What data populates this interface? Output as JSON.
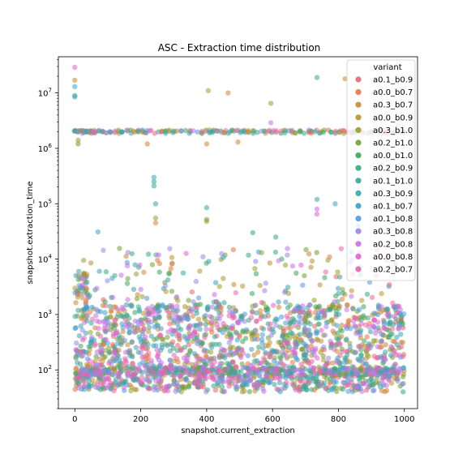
{
  "chart_data": {
    "type": "scatter",
    "title": "ASC - Extraction time distribution",
    "xlabel": "snapshot.current_extraction",
    "ylabel": "snapshot.extraction_time",
    "xlim": [
      -50,
      1040
    ],
    "ylim": [
      20,
      45000000
    ],
    "yscale": "log",
    "x_ticks": [
      {
        "value": 0,
        "label": "0"
      },
      {
        "value": 200,
        "label": "200"
      },
      {
        "value": 400,
        "label": "400"
      },
      {
        "value": 600,
        "label": "600"
      },
      {
        "value": 800,
        "label": "800"
      },
      {
        "value": 1000,
        "label": "1000"
      }
    ],
    "y_ticks": [
      {
        "value": 100,
        "base": "10",
        "exp": "2"
      },
      {
        "value": 1000,
        "base": "10",
        "exp": "3"
      },
      {
        "value": 10000,
        "base": "10",
        "exp": "4"
      },
      {
        "value": 100000,
        "base": "10",
        "exp": "5"
      },
      {
        "value": 1000000,
        "base": "10",
        "exp": "6"
      },
      {
        "value": 10000000,
        "base": "10",
        "exp": "7"
      }
    ],
    "grid": false,
    "legend": {
      "title": "variant",
      "placement": "top-right",
      "entries": [
        {
          "name": "a0.1_b0.9",
          "color": "#e8656f"
        },
        {
          "name": "a0.0_b0.7",
          "color": "#e8743b"
        },
        {
          "name": "a0.3_b0.7",
          "color": "#c98a2e"
        },
        {
          "name": "a0.0_b0.9",
          "color": "#b5932a"
        },
        {
          "name": "a0.3_b1.0",
          "color": "#9b9c2c"
        },
        {
          "name": "a0.2_b1.0",
          "color": "#6fa12f"
        },
        {
          "name": "a0.0_b1.0",
          "color": "#3aa659"
        },
        {
          "name": "a0.2_b0.9",
          "color": "#33a884"
        },
        {
          "name": "a0.1_b1.0",
          "color": "#35a59b"
        },
        {
          "name": "a0.3_b0.9",
          "color": "#37a4ad"
        },
        {
          "name": "a0.1_b0.7",
          "color": "#3aa1c6"
        },
        {
          "name": "a0.1_b0.8",
          "color": "#4f98e0"
        },
        {
          "name": "a0.3_b0.8",
          "color": "#9a86e8"
        },
        {
          "name": "a0.2_b0.8",
          "color": "#c96fe8"
        },
        {
          "name": "a0.0_b0.8",
          "color": "#e060d2"
        },
        {
          "name": "a0.2_b0.7",
          "color": "#e765a6"
        }
      ]
    },
    "point_alpha": 0.55,
    "series_summary": {
      "x_range": [
        0,
        1000
      ],
      "bulk_band_y": [
        40,
        1500
      ],
      "plateau_y": 2000000,
      "outlier_points": [
        {
          "x": 0,
          "y": 29000000,
          "series": "a0.0_b0.8"
        },
        {
          "x": 0,
          "y": 17000000,
          "series": "a0.3_b0.7"
        },
        {
          "x": 0,
          "y": 13000000,
          "series": "a0.1_b0.7"
        },
        {
          "x": 0,
          "y": 9000000,
          "series": "a0.3_b0.9"
        },
        {
          "x": 0,
          "y": 8500000,
          "series": "a0.1_b1.0"
        },
        {
          "x": 405,
          "y": 11000000,
          "series": "a0.0_b0.9"
        },
        {
          "x": 465,
          "y": 10000000,
          "series": "a0.3_b0.7"
        },
        {
          "x": 595,
          "y": 6500000,
          "series": "a0.3_b1.0"
        },
        {
          "x": 735,
          "y": 19000000,
          "series": "a0.1_b1.0"
        },
        {
          "x": 820,
          "y": 18000000,
          "series": "a0.3_b0.7"
        },
        {
          "x": 595,
          "y": 2900000,
          "series": "a0.2_b0.8"
        },
        {
          "x": 240,
          "y": 300000,
          "series": "a0.1_b0.7"
        },
        {
          "x": 240,
          "y": 250000,
          "series": "a0.2_b0.9"
        },
        {
          "x": 240,
          "y": 210000,
          "series": "a0.3_b0.9"
        },
        {
          "x": 245,
          "y": 100000,
          "series": "a0.3_b0.9"
        },
        {
          "x": 245,
          "y": 55000,
          "series": "a0.3_b1.0"
        },
        {
          "x": 245,
          "y": 45000,
          "series": "a0.3_b0.7"
        },
        {
          "x": 400,
          "y": 85000,
          "series": "a0.1_b1.0"
        },
        {
          "x": 400,
          "y": 52000,
          "series": "a0.2_b1.0"
        },
        {
          "x": 400,
          "y": 48000,
          "series": "a0.3_b1.0"
        },
        {
          "x": 735,
          "y": 120000,
          "series": "a0.1_b1.0"
        },
        {
          "x": 735,
          "y": 80000,
          "series": "a0.2_b0.8"
        },
        {
          "x": 735,
          "y": 65000,
          "series": "a0.0_b0.8"
        },
        {
          "x": 790,
          "y": 100000,
          "series": "a0.1_b0.7"
        },
        {
          "x": 70,
          "y": 31000,
          "series": "a0.1_b0.7"
        },
        {
          "x": 540,
          "y": 30000,
          "series": "a0.2_b0.9"
        },
        {
          "x": 610,
          "y": 25000,
          "series": "a0.2_b0.9"
        },
        {
          "x": 860,
          "y": 40000,
          "series": "a0.1_b0.7"
        },
        {
          "x": 220,
          "y": 1200000,
          "series": "a0.3_b0.7"
        },
        {
          "x": 400,
          "y": 1200000,
          "series": "a0.3_b0.7"
        },
        {
          "x": 495,
          "y": 1300000,
          "series": "a0.3_b0.7"
        },
        {
          "x": 10,
          "y": 1200000,
          "series": "a0.2_b1.0"
        },
        {
          "x": 10,
          "y": 1400000,
          "series": "a0.3_b1.0"
        }
      ]
    }
  }
}
